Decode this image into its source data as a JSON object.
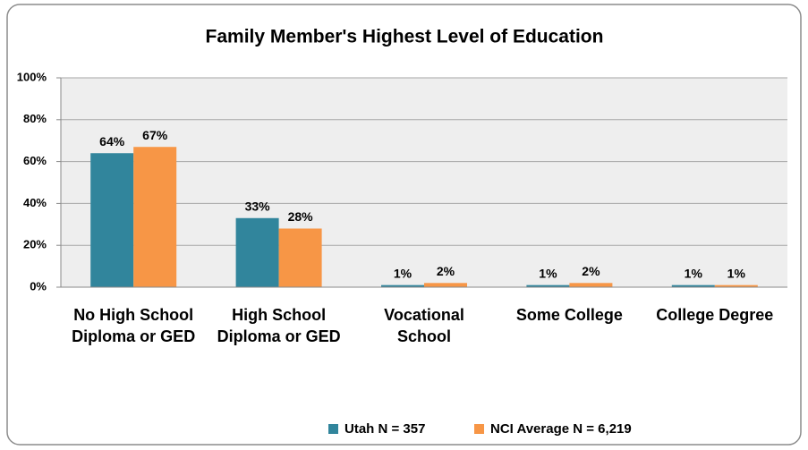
{
  "chart_data": {
    "type": "bar",
    "title": "Family Member's Highest Level of Education",
    "categories": [
      "No High School Diploma or GED",
      "High School Diploma or GED",
      "Vocational School",
      "Some College",
      "College Degree"
    ],
    "series": [
      {
        "name": "Utah N = 357",
        "color": "#31859c",
        "values": [
          64,
          33,
          1,
          1,
          1
        ],
        "value_labels": [
          "64%",
          "33%",
          "1%",
          "1%",
          "1%"
        ]
      },
      {
        "name": "NCI Average N = 6,219",
        "color": "#f79646",
        "values": [
          67,
          28,
          2,
          2,
          1
        ],
        "value_labels": [
          "67%",
          "28%",
          "2%",
          "2%",
          "1%"
        ]
      }
    ],
    "ylim": [
      0,
      100
    ],
    "yticks": [
      {
        "value": 0,
        "label": "0%"
      },
      {
        "value": 20,
        "label": "20%"
      },
      {
        "value": 40,
        "label": "40%"
      },
      {
        "value": 60,
        "label": "60%"
      },
      {
        "value": 80,
        "label": "80%"
      },
      {
        "value": 100,
        "label": "100%"
      }
    ],
    "grid": true,
    "legend": "bottom"
  }
}
